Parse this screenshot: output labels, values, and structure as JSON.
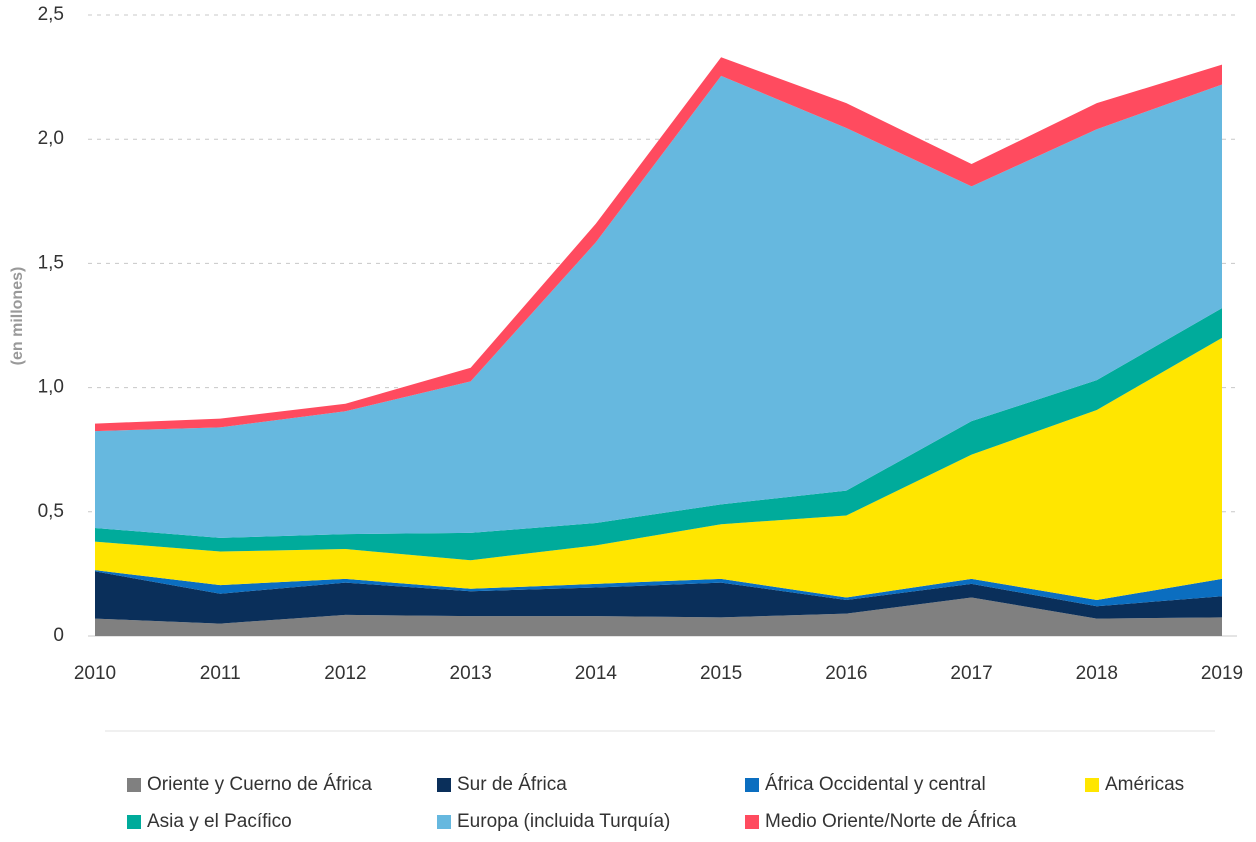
{
  "chart_data": {
    "type": "stacked_area",
    "y_label": "(en millones)",
    "categories": [
      "2010",
      "2011",
      "2012",
      "2013",
      "2014",
      "2015",
      "2016",
      "2017",
      "2018",
      "2019"
    ],
    "series": [
      {
        "name": "Oriente y Cuerno de África",
        "color": "#808080",
        "values": [
          0.07,
          0.05,
          0.085,
          0.08,
          0.08,
          0.075,
          0.09,
          0.155,
          0.07,
          0.075
        ]
      },
      {
        "name": "Sur de África",
        "color": "#0a2f5a",
        "values": [
          0.19,
          0.12,
          0.13,
          0.1,
          0.115,
          0.14,
          0.055,
          0.055,
          0.05,
          0.085
        ]
      },
      {
        "name": "África Occidental y central",
        "color": "#0b6ec0",
        "values": [
          0.005,
          0.035,
          0.015,
          0.01,
          0.015,
          0.015,
          0.01,
          0.02,
          0.025,
          0.07
        ]
      },
      {
        "name": "Américas",
        "color": "#ffe600",
        "values": [
          0.115,
          0.135,
          0.12,
          0.115,
          0.155,
          0.22,
          0.33,
          0.5,
          0.765,
          0.97
        ]
      },
      {
        "name": "Asia y el Pacífico",
        "color": "#00ab9b",
        "values": [
          0.055,
          0.055,
          0.06,
          0.11,
          0.09,
          0.08,
          0.1,
          0.135,
          0.12,
          0.12
        ]
      },
      {
        "name": "Europa (incluida Turquía)",
        "color": "#66b8df",
        "values": [
          0.39,
          0.445,
          0.495,
          0.61,
          1.13,
          1.725,
          1.46,
          0.945,
          1.01,
          0.9
        ]
      },
      {
        "name": "Medio Oriente/Norte de África",
        "color": "#ff4b5f",
        "values": [
          0.03,
          0.035,
          0.03,
          0.055,
          0.075,
          0.075,
          0.1,
          0.09,
          0.105,
          0.08
        ]
      }
    ],
    "ylim": [
      0,
      2.5
    ],
    "yticks": [
      0,
      {
        "value": 0.5,
        "label": "0,5"
      },
      {
        "value": 1,
        "label": "1,0"
      },
      {
        "value": 1.5,
        "label": "1,5"
      },
      {
        "value": 2,
        "label": "2,0"
      },
      {
        "value": 2.5,
        "label": "2,5"
      }
    ],
    "grid": true
  }
}
